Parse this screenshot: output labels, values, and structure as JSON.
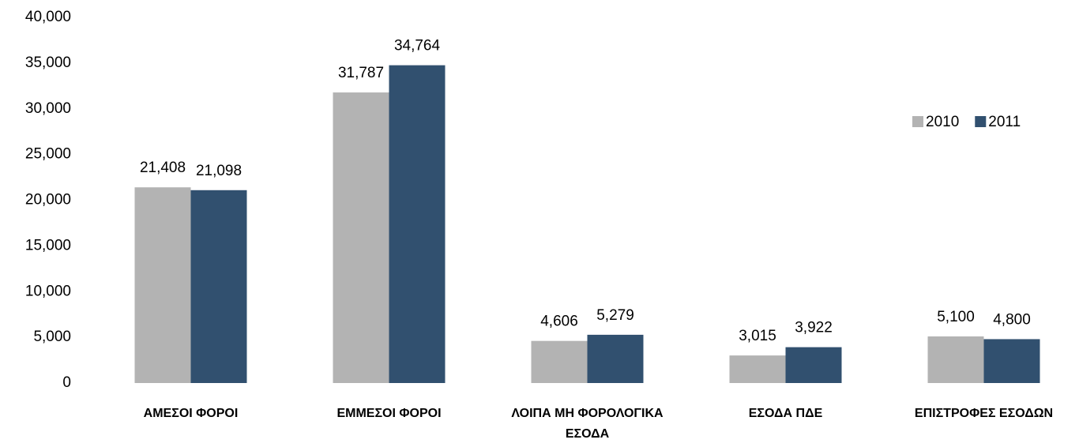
{
  "chart_data": {
    "type": "bar",
    "categories": [
      "ΑΜΕΣΟΙ ΦΟΡΟΙ",
      "ΕΜΜΕΣΟΙ ΦΟΡΟΙ",
      "ΛΟΙΠΑ ΜΗ ΦΟΡΟΛΟΓΙΚΑ ΕΣΟΔΑ",
      "ΕΣΟΔΑ ΠΔΕ",
      "ΕΠΙΣΤΡΟΦΕΣ ΕΣΟΔΩΝ"
    ],
    "series": [
      {
        "name": "2010",
        "color": "#b3b3b3",
        "values": [
          21408,
          31787,
          4606,
          3015,
          5100
        ],
        "value_labels": [
          "21,408",
          "31,787",
          "4,606",
          "3,015",
          "5,100"
        ]
      },
      {
        "name": "2011",
        "color": "#31506f",
        "values": [
          21098,
          34764,
          5279,
          3922,
          4800
        ],
        "value_labels": [
          "21,098",
          "34,764",
          "5,279",
          "3,922",
          "4,800"
        ]
      }
    ],
    "ylim": [
      0,
      40000
    ],
    "yticks": [
      0,
      {
        "value": 5000,
        "label": "5,000"
      },
      {
        "value": 10000,
        "label": "10,000"
      },
      {
        "value": 15000,
        "label": "15,000"
      },
      {
        "value": 20000,
        "label": "20,000"
      },
      {
        "value": 25000,
        "label": "25,000"
      },
      {
        "value": 30000,
        "label": "30,000"
      },
      {
        "value": 35000,
        "label": "35,000"
      },
      {
        "value": 40000,
        "label": "40,000"
      }
    ],
    "grid": false,
    "legend": "right"
  }
}
